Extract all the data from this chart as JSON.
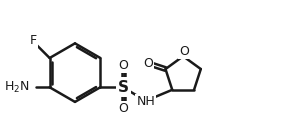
{
  "background_color": "#ffffff",
  "line_color": "#1a1a1a",
  "line_width": 1.8,
  "font_size": 9,
  "labels": {
    "F": "F",
    "NH2": "H₂N",
    "S": "S",
    "O_top": "O",
    "O_bot": "O",
    "NH": "NH",
    "O_ring": "O",
    "O_carbonyl": "O"
  }
}
